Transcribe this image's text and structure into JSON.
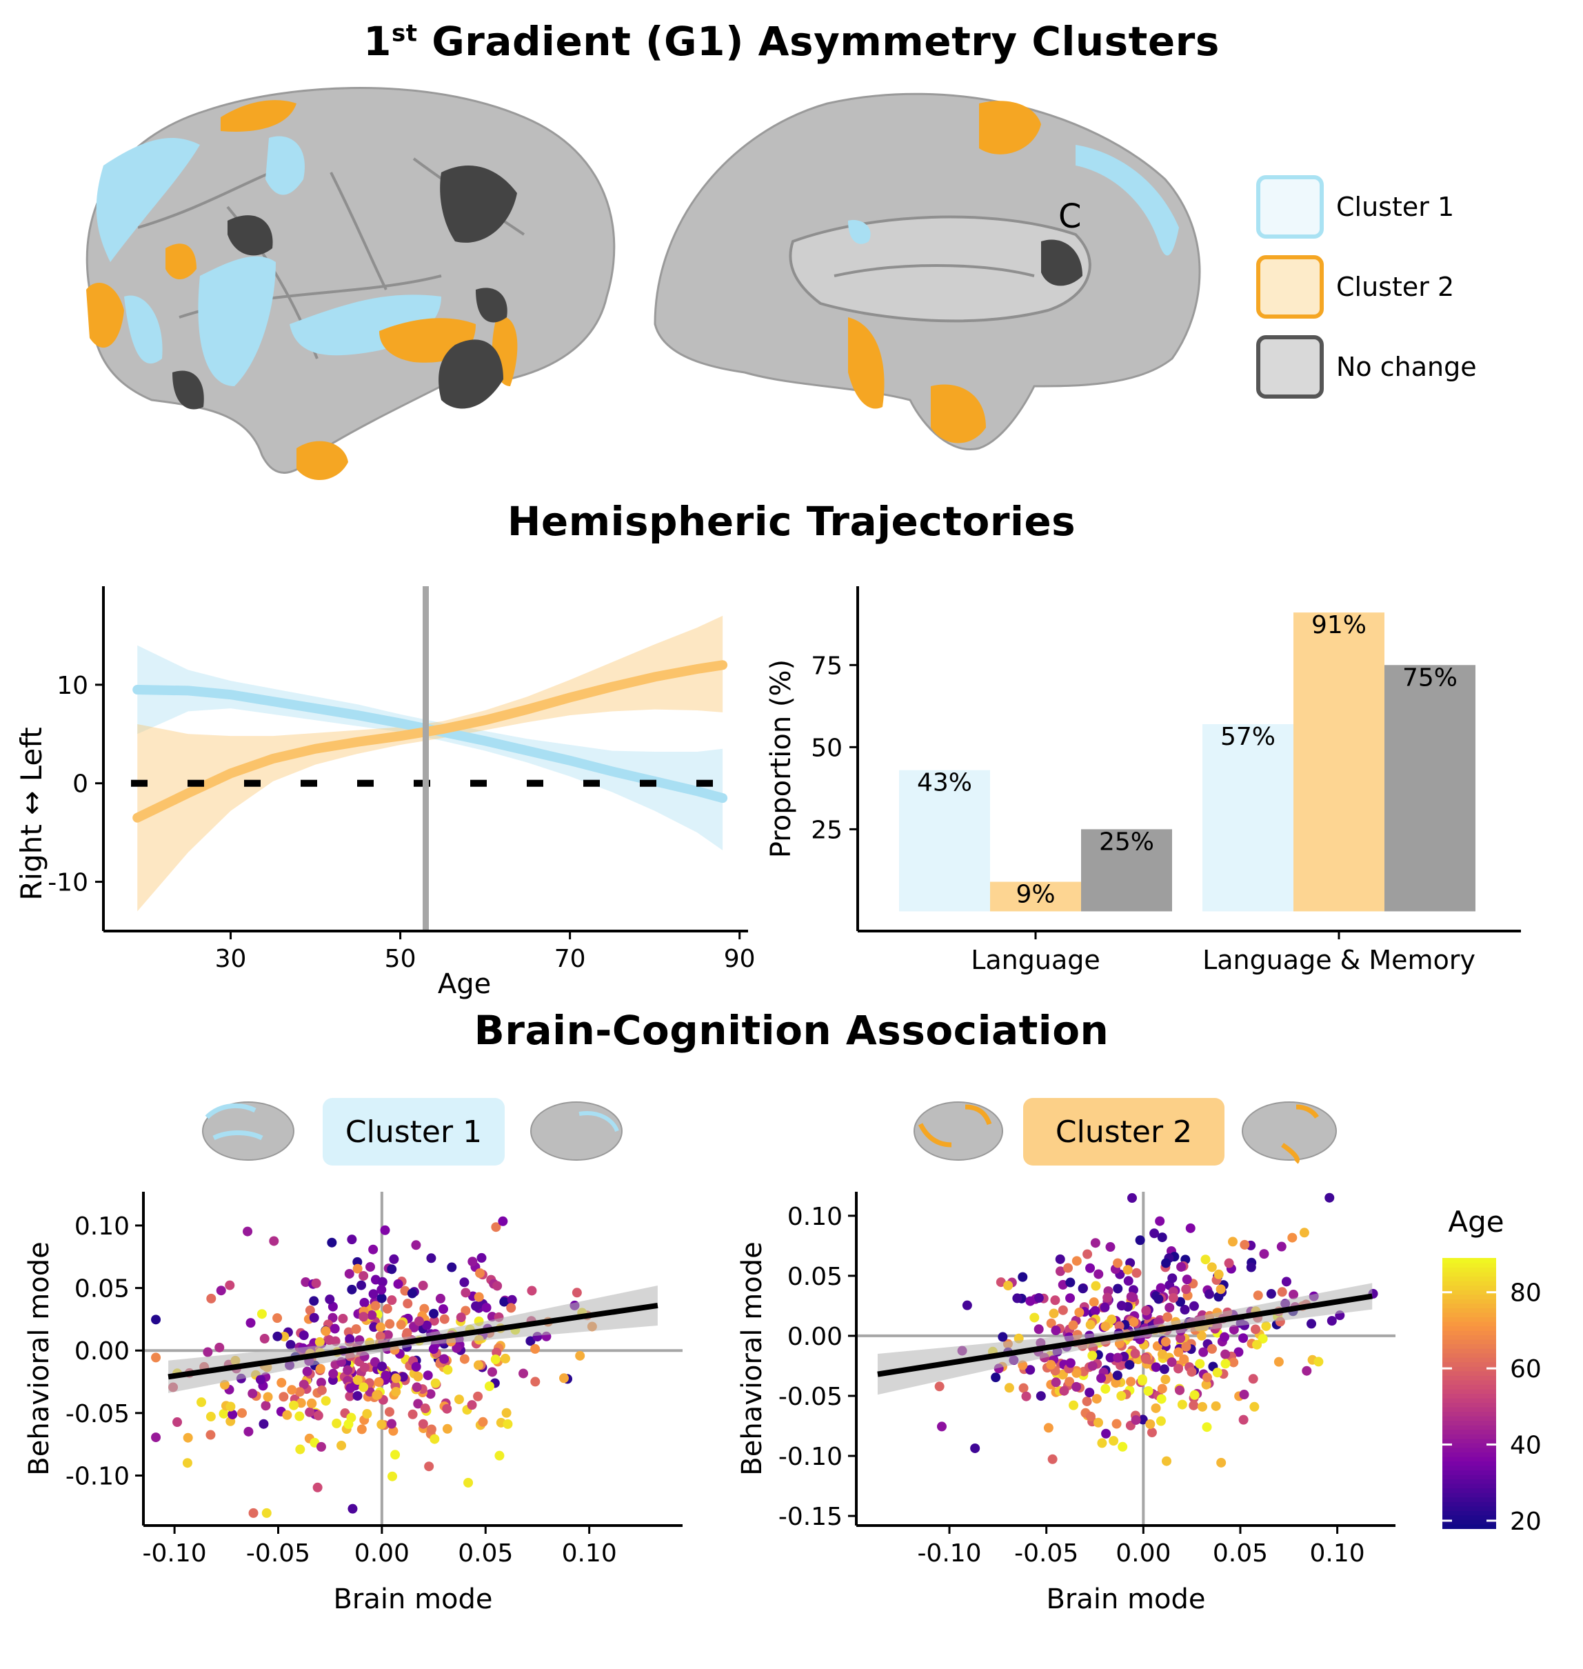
{
  "titles": {
    "top_prefix": "1",
    "top_sup": "st",
    "top_rest": " Gradient (G1) Asymmetry Clusters",
    "middle": "Hemispheric Trajectories",
    "bottom": "Brain-Cognition Association"
  },
  "brain": {
    "medial_label": "C"
  },
  "legend": {
    "items": [
      {
        "label": "Cluster 1",
        "fill": "#eff9fd",
        "border": "#a9e2f3"
      },
      {
        "label": "Cluster 2",
        "fill": "#fdebc9",
        "border": "#f5a623"
      },
      {
        "label": "No change",
        "fill": "#d9d9d9",
        "border": "#555555"
      }
    ]
  },
  "colors": {
    "cluster1": "#a9dff3",
    "cluster2": "#fbc36a",
    "nochange": "#9e9e9e",
    "brain_gray": "#bdbdbd"
  },
  "chart_data": [
    {
      "id": "trajectories",
      "type": "line",
      "xlabel": "Age",
      "ylabel": "Right ↔ Left",
      "xticks": [
        30,
        50,
        70,
        90
      ],
      "yticks": [
        -10,
        0,
        10
      ],
      "xlim": [
        15,
        91
      ],
      "ylim": [
        -15,
        20
      ],
      "vline": 53,
      "hline": 0,
      "series": [
        {
          "color": "#a9dff3",
          "x": [
            19,
            25,
            30,
            35,
            40,
            45,
            50,
            55,
            60,
            65,
            70,
            75,
            80,
            85,
            88
          ],
          "y": [
            9.5,
            9.4,
            9.0,
            8.3,
            7.6,
            6.9,
            6.1,
            5.2,
            4.3,
            3.3,
            2.3,
            1.2,
            0.2,
            -0.8,
            -1.5
          ],
          "lower": [
            5.0,
            7.3,
            7.6,
            7.0,
            6.4,
            5.8,
            5.2,
            4.3,
            3.3,
            2.1,
            0.7,
            -0.9,
            -2.8,
            -5.0,
            -6.8
          ],
          "upper": [
            14.0,
            11.5,
            10.4,
            9.6,
            8.8,
            8.0,
            7.0,
            6.1,
            5.3,
            4.5,
            3.9,
            3.3,
            3.2,
            3.2,
            3.5
          ]
        },
        {
          "color": "#fbc36a",
          "x": [
            19,
            25,
            30,
            35,
            40,
            45,
            50,
            55,
            60,
            65,
            70,
            75,
            80,
            85,
            88
          ],
          "y": [
            -3.5,
            -1.0,
            1.0,
            2.5,
            3.5,
            4.2,
            4.8,
            5.5,
            6.4,
            7.5,
            8.7,
            9.8,
            10.8,
            11.6,
            12.0
          ],
          "lower": [
            -13.0,
            -7.0,
            -2.8,
            0.2,
            1.9,
            3.0,
            3.9,
            4.6,
            5.4,
            6.2,
            6.9,
            7.3,
            7.5,
            7.4,
            7.2
          ],
          "upper": [
            6.0,
            5.0,
            4.8,
            4.8,
            5.1,
            5.4,
            5.7,
            6.3,
            7.4,
            8.8,
            10.5,
            12.3,
            14.1,
            15.8,
            17.0
          ]
        }
      ]
    },
    {
      "id": "proportions",
      "type": "bar",
      "ylabel": "Proportion (%)",
      "yticks": [
        25,
        50,
        75
      ],
      "ylim": [
        -6,
        99
      ],
      "categories": [
        "Language",
        "Language & Memory"
      ],
      "series": [
        {
          "color": "#e3f5fc",
          "values": [
            43,
            57
          ],
          "labels": [
            "43%",
            "57%"
          ]
        },
        {
          "color": "#fdd592",
          "values": [
            9,
            91
          ],
          "labels": [
            "9%",
            "91%"
          ]
        },
        {
          "color": "#9e9e9e",
          "values": [
            25,
            75
          ],
          "labels": [
            "25%",
            "75%"
          ]
        }
      ]
    },
    {
      "id": "scatter_cluster1",
      "type": "scatter",
      "badge": "Cluster 1",
      "xlabel": "Brain mode",
      "ylabel": "Behavioral mode",
      "xticks": [
        "-0.10",
        "-0.05",
        "0.00",
        "0.05",
        "0.10"
      ],
      "yticks": [
        "0.10",
        "0.05",
        "0.00",
        "-0.05",
        "-0.10"
      ],
      "xlim": [
        -0.115,
        0.145
      ],
      "ylim": [
        -0.14,
        0.127
      ],
      "fit": {
        "x": [
          -0.103,
          0.133
        ],
        "y": [
          -0.021,
          0.036
        ],
        "band": [
          0.013,
          0.004,
          0.016
        ]
      },
      "color_by": "Age"
    },
    {
      "id": "scatter_cluster2",
      "type": "scatter",
      "badge": "Cluster 2",
      "xlabel": "Brain mode",
      "ylabel": "Behavioral mode",
      "xticks": [
        "-0.10",
        "-0.05",
        "0.00",
        "0.05",
        "0.10"
      ],
      "yticks": [
        "0.10",
        "0.05",
        "0.00",
        "-0.05",
        "-0.10",
        "-0.15"
      ],
      "xlim": [
        -0.148,
        0.13
      ],
      "ylim": [
        -0.158,
        0.12
      ],
      "fit": {
        "x": [
          -0.137,
          0.118
        ],
        "y": [
          -0.032,
          0.033
        ],
        "band": [
          0.017,
          0.004,
          0.011
        ]
      },
      "color_by": "Age"
    }
  ],
  "colorbar": {
    "title": "Age",
    "ticks": [
      "80",
      "60",
      "40",
      "20"
    ],
    "tick_values": [
      80,
      60,
      40,
      20
    ],
    "range": [
      18,
      89
    ]
  }
}
